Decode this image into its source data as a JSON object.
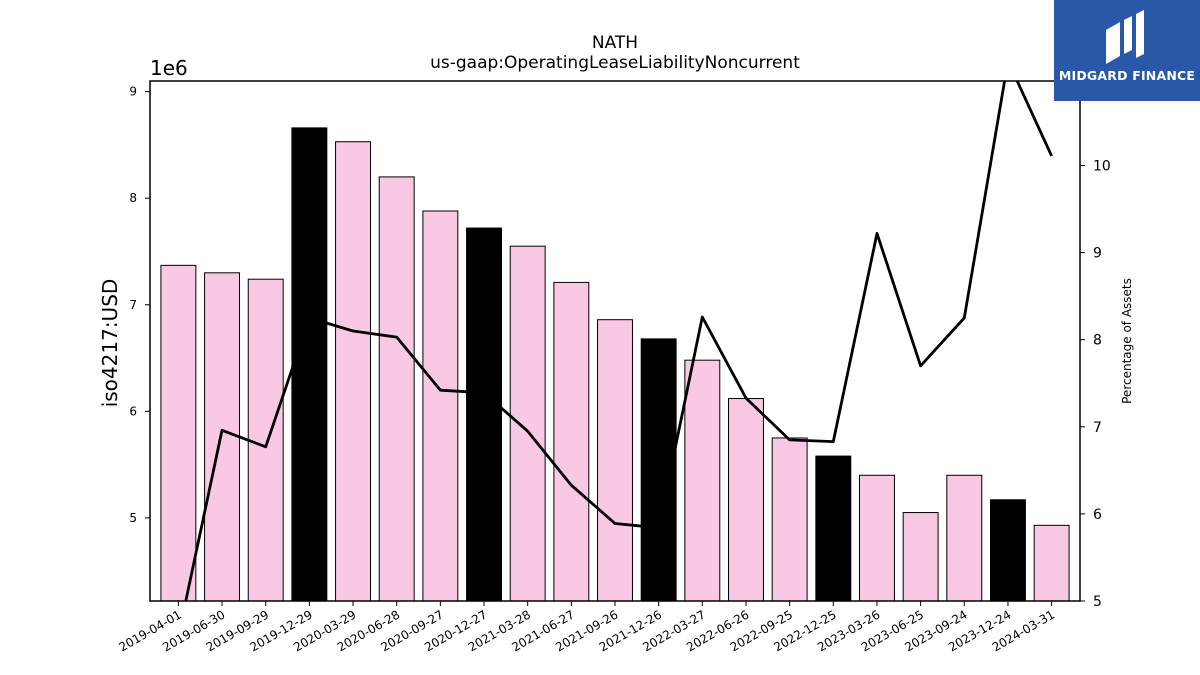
{
  "chart_data": {
    "type": "bar",
    "title": "NATH",
    "subtitle": "us-gaap:OperatingLeaseLiabilityNoncurrent",
    "ylabel": "iso4217:USD",
    "y_offset_text": "1e6",
    "y2label": "Percentage of Assets",
    "ylim": [
      4.22,
      9.1
    ],
    "y2lim": [
      5,
      10.97
    ],
    "yticks": [
      "5",
      "6",
      "7",
      "8",
      "9"
    ],
    "y2ticks": [
      "5",
      "6",
      "7",
      "8",
      "9",
      "10"
    ],
    "categories": [
      "2019-04-01",
      "2019-06-30",
      "2019-09-29",
      "2019-12-29",
      "2020-03-29",
      "2020-06-28",
      "2020-09-27",
      "2020-12-27",
      "2021-03-28",
      "2021-06-27",
      "2021-09-26",
      "2021-12-26",
      "2022-03-27",
      "2022-06-26",
      "2022-09-25",
      "2022-12-25",
      "2023-03-26",
      "2023-06-25",
      "2023-09-24",
      "2023-12-24",
      "2024-03-31"
    ],
    "series": [
      {
        "values": [
          7.37,
          7.3,
          7.24,
          8.66,
          8.53,
          8.2,
          7.88,
          7.72,
          7.55,
          7.21,
          6.86,
          6.68,
          6.48,
          6.12,
          5.75,
          5.58,
          5.4,
          5.05,
          5.4,
          5.17,
          4.93
        ],
        "colors": [
          "#f9c8e2",
          "#f9c8e2",
          "#f9c8e2",
          "#000000",
          "#f9c8e2",
          "#f9c8e2",
          "#f9c8e2",
          "#000000",
          "#f9c8e2",
          "#f9c8e2",
          "#f9c8e2",
          "#000000",
          "#f9c8e2",
          "#f9c8e2",
          "#f9c8e2",
          "#000000",
          "#f9c8e2",
          "#f9c8e2",
          "#f9c8e2",
          "#000000",
          "#f9c8e2"
        ]
      },
      {
        "type": "line",
        "axis": "right",
        "values": [
          4.6,
          6.96,
          6.77,
          8.25,
          8.1,
          8.03,
          7.42,
          7.39,
          6.95,
          6.33,
          5.89,
          5.84,
          8.26,
          7.33,
          6.85,
          6.83,
          9.22,
          7.7,
          8.25,
          11.2,
          10.11
        ]
      }
    ],
    "grid": false
  },
  "logo": {
    "text": "MIDGARD FINANCE"
  },
  "colors": {
    "bar": "#f9c8e2",
    "bar_highlight": "#000000",
    "line": "#000000",
    "logo_bg": "#2a58a8"
  }
}
